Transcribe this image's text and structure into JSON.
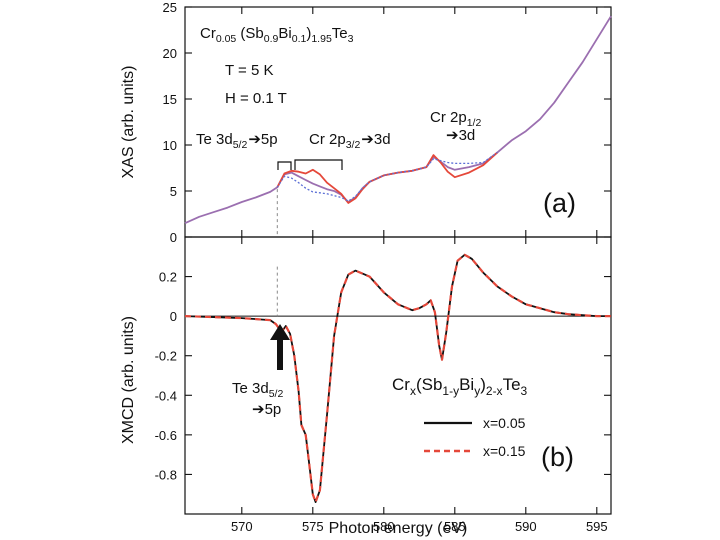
{
  "chart_data": [
    {
      "id": "a",
      "type": "line",
      "panel_label": "(a)",
      "xlabel": "",
      "ylabel": "XAS (arb. units)",
      "xlim": [
        566,
        596
      ],
      "ylim": [
        0,
        25
      ],
      "yticks": [
        0,
        5,
        10,
        15,
        20,
        25
      ],
      "sample_label": {
        "base": "Cr",
        "s1": "0.05",
        "mid": " (Sb",
        "s2": "0.9",
        "mid2": "Bi",
        "s3": "0.1",
        "mid3": ")",
        "s4": "1.95",
        "end": "Te",
        "s5": "3"
      },
      "conditions": [
        "T = 5 K",
        "H = 0.1 T"
      ],
      "annotations": {
        "te": {
          "a": "Te 3d",
          "sub": "5/2",
          "b": "5p"
        },
        "cr32": {
          "a": "Cr 2p",
          "sub": "3/2",
          "b": "3d"
        },
        "cr12": {
          "a": "Cr 2p",
          "sub": "1/2",
          "b": "3d"
        }
      },
      "series": [
        {
          "name": "",
          "color": "#9b6fb0",
          "style": "solid",
          "x": [
            566,
            567,
            568,
            569,
            570,
            571,
            572,
            572.5,
            573,
            573.5,
            574,
            574.5,
            575,
            575.5,
            576,
            576.5,
            577,
            577.5,
            578,
            578.5,
            579,
            580,
            581,
            582,
            583,
            583.5,
            584,
            584.5,
            585,
            586,
            587,
            588,
            589,
            590,
            591,
            592,
            593,
            594,
            595,
            596
          ],
          "y": [
            1.5,
            2.2,
            2.7,
            3.2,
            3.8,
            4.3,
            4.9,
            5.4,
            6.8,
            7.0,
            6.6,
            6.2,
            5.8,
            5.5,
            5.2,
            5.0,
            4.6,
            3.8,
            4.3,
            5.3,
            6.0,
            6.7,
            7.0,
            7.2,
            7.6,
            8.7,
            8.2,
            7.6,
            7.3,
            7.6,
            8.0,
            9.2,
            10.5,
            11.5,
            12.8,
            14.6,
            16.8,
            19.0,
            21.5,
            24.0
          ]
        },
        {
          "name": "",
          "color": "#e5483a",
          "style": "solid",
          "x": [
            572.5,
            573,
            573.5,
            574,
            574.5,
            575,
            575.5,
            576,
            576.5,
            577,
            577.5,
            578,
            578.5,
            579,
            580,
            581,
            582,
            583,
            583.5,
            584,
            584.5,
            585,
            586,
            587,
            588
          ],
          "y": [
            5.4,
            6.9,
            7.2,
            7.1,
            6.9,
            7.3,
            6.8,
            5.9,
            5.3,
            4.7,
            3.7,
            4.2,
            5.2,
            6.0,
            6.7,
            7.0,
            7.2,
            7.6,
            8.9,
            8.1,
            7.1,
            6.5,
            7.0,
            7.8,
            9.2
          ]
        },
        {
          "name": "",
          "color": "#5b6fd6",
          "style": "dotted",
          "x": [
            572.5,
            573,
            573.5,
            574,
            574.5,
            575,
            575.5,
            576,
            576.5,
            577,
            577.5,
            578,
            578.5,
            579,
            580,
            581,
            582,
            583,
            583.5,
            584,
            584.5,
            585,
            586,
            587,
            588
          ],
          "y": [
            5.4,
            6.6,
            6.4,
            5.9,
            5.3,
            4.9,
            4.8,
            4.7,
            4.5,
            4.3,
            3.9,
            4.4,
            5.3,
            6.0,
            6.7,
            7.0,
            7.2,
            7.6,
            8.5,
            8.3,
            8.1,
            8.0,
            8.0,
            8.1,
            9.2
          ]
        }
      ],
      "guide_x": 572.5
    },
    {
      "id": "b",
      "type": "line",
      "panel_label": "(b)",
      "xlabel": "Photon energy (eV)",
      "ylabel": "XMCD (arb. units)",
      "xlim": [
        566,
        596
      ],
      "ylim": [
        -1.0,
        0.4
      ],
      "yticks": [
        -0.8,
        -0.6,
        -0.4,
        -0.2,
        0,
        0.2
      ],
      "ytick_labels": [
        "-0.8",
        "-0.6",
        "-0.4",
        "-0.2",
        "0",
        "0.2"
      ],
      "xticks": [
        570,
        575,
        580,
        585,
        590,
        595
      ],
      "xtick_labels": [
        "570",
        "575",
        "580",
        "585",
        "590",
        "595"
      ],
      "zero_line": true,
      "guide_x": 572.5,
      "arrow_annotation": {
        "a": "Te 3d",
        "sub": "5/2",
        "b": "5p"
      },
      "legend": {
        "title": {
          "base": "Cr",
          "s1": "x",
          "mid": "(Sb",
          "s2": "1-y",
          "mid2": "Bi",
          "s3": "y",
          "mid3": ")",
          "s4": "2-x",
          "end": "Te",
          "s5": "3"
        },
        "placement": "lower-right"
      },
      "series": [
        {
          "name": "x=0.05",
          "color": "#111111",
          "style": "solid",
          "x": [
            566,
            568,
            570,
            571,
            572,
            572.4,
            572.8,
            573.1,
            573.4,
            573.7,
            574.0,
            574.2,
            574.5,
            574.8,
            575.0,
            575.2,
            575.5,
            576.0,
            576.5,
            577.0,
            577.5,
            578.0,
            579.0,
            580.0,
            581.0,
            582.0,
            582.5,
            583.0,
            583.3,
            583.6,
            583.9,
            584.1,
            584.4,
            584.8,
            585.2,
            585.7,
            586.2,
            587.0,
            588.0,
            589.0,
            590.0,
            591.0,
            592.0,
            593.0,
            594.0,
            595.0,
            596.0
          ],
          "y": [
            0,
            -0.005,
            -0.01,
            -0.015,
            -0.02,
            -0.04,
            -0.08,
            -0.05,
            -0.09,
            -0.2,
            -0.38,
            -0.55,
            -0.6,
            -0.78,
            -0.9,
            -0.94,
            -0.88,
            -0.5,
            -0.1,
            0.12,
            0.21,
            0.23,
            0.2,
            0.12,
            0.06,
            0.03,
            0.04,
            0.06,
            0.08,
            0.02,
            -0.15,
            -0.22,
            -0.08,
            0.15,
            0.28,
            0.31,
            0.29,
            0.22,
            0.15,
            0.1,
            0.06,
            0.04,
            0.02,
            0.01,
            0.005,
            0,
            0
          ]
        },
        {
          "name": "x=0.15",
          "color": "#e5483a",
          "style": "dashed",
          "x": [
            566,
            568,
            570,
            571,
            572,
            572.4,
            572.8,
            573.1,
            573.4,
            573.7,
            574.0,
            574.2,
            574.5,
            574.8,
            575.0,
            575.2,
            575.5,
            576.0,
            576.5,
            577.0,
            577.5,
            578.0,
            579.0,
            580.0,
            581.0,
            582.0,
            582.5,
            583.0,
            583.3,
            583.6,
            583.9,
            584.1,
            584.4,
            584.8,
            585.2,
            585.7,
            586.2,
            587.0,
            588.0,
            589.0,
            590.0,
            591.0,
            592.0,
            593.0,
            594.0,
            595.0,
            596.0
          ],
          "y": [
            0,
            -0.005,
            -0.01,
            -0.015,
            -0.02,
            -0.04,
            -0.08,
            -0.05,
            -0.09,
            -0.2,
            -0.38,
            -0.55,
            -0.6,
            -0.78,
            -0.9,
            -0.94,
            -0.88,
            -0.5,
            -0.1,
            0.12,
            0.21,
            0.23,
            0.2,
            0.12,
            0.06,
            0.03,
            0.04,
            0.06,
            0.08,
            0.02,
            -0.15,
            -0.22,
            -0.08,
            0.15,
            0.28,
            0.31,
            0.29,
            0.22,
            0.15,
            0.1,
            0.06,
            0.04,
            0.02,
            0.01,
            0.005,
            0,
            0
          ]
        }
      ]
    }
  ]
}
